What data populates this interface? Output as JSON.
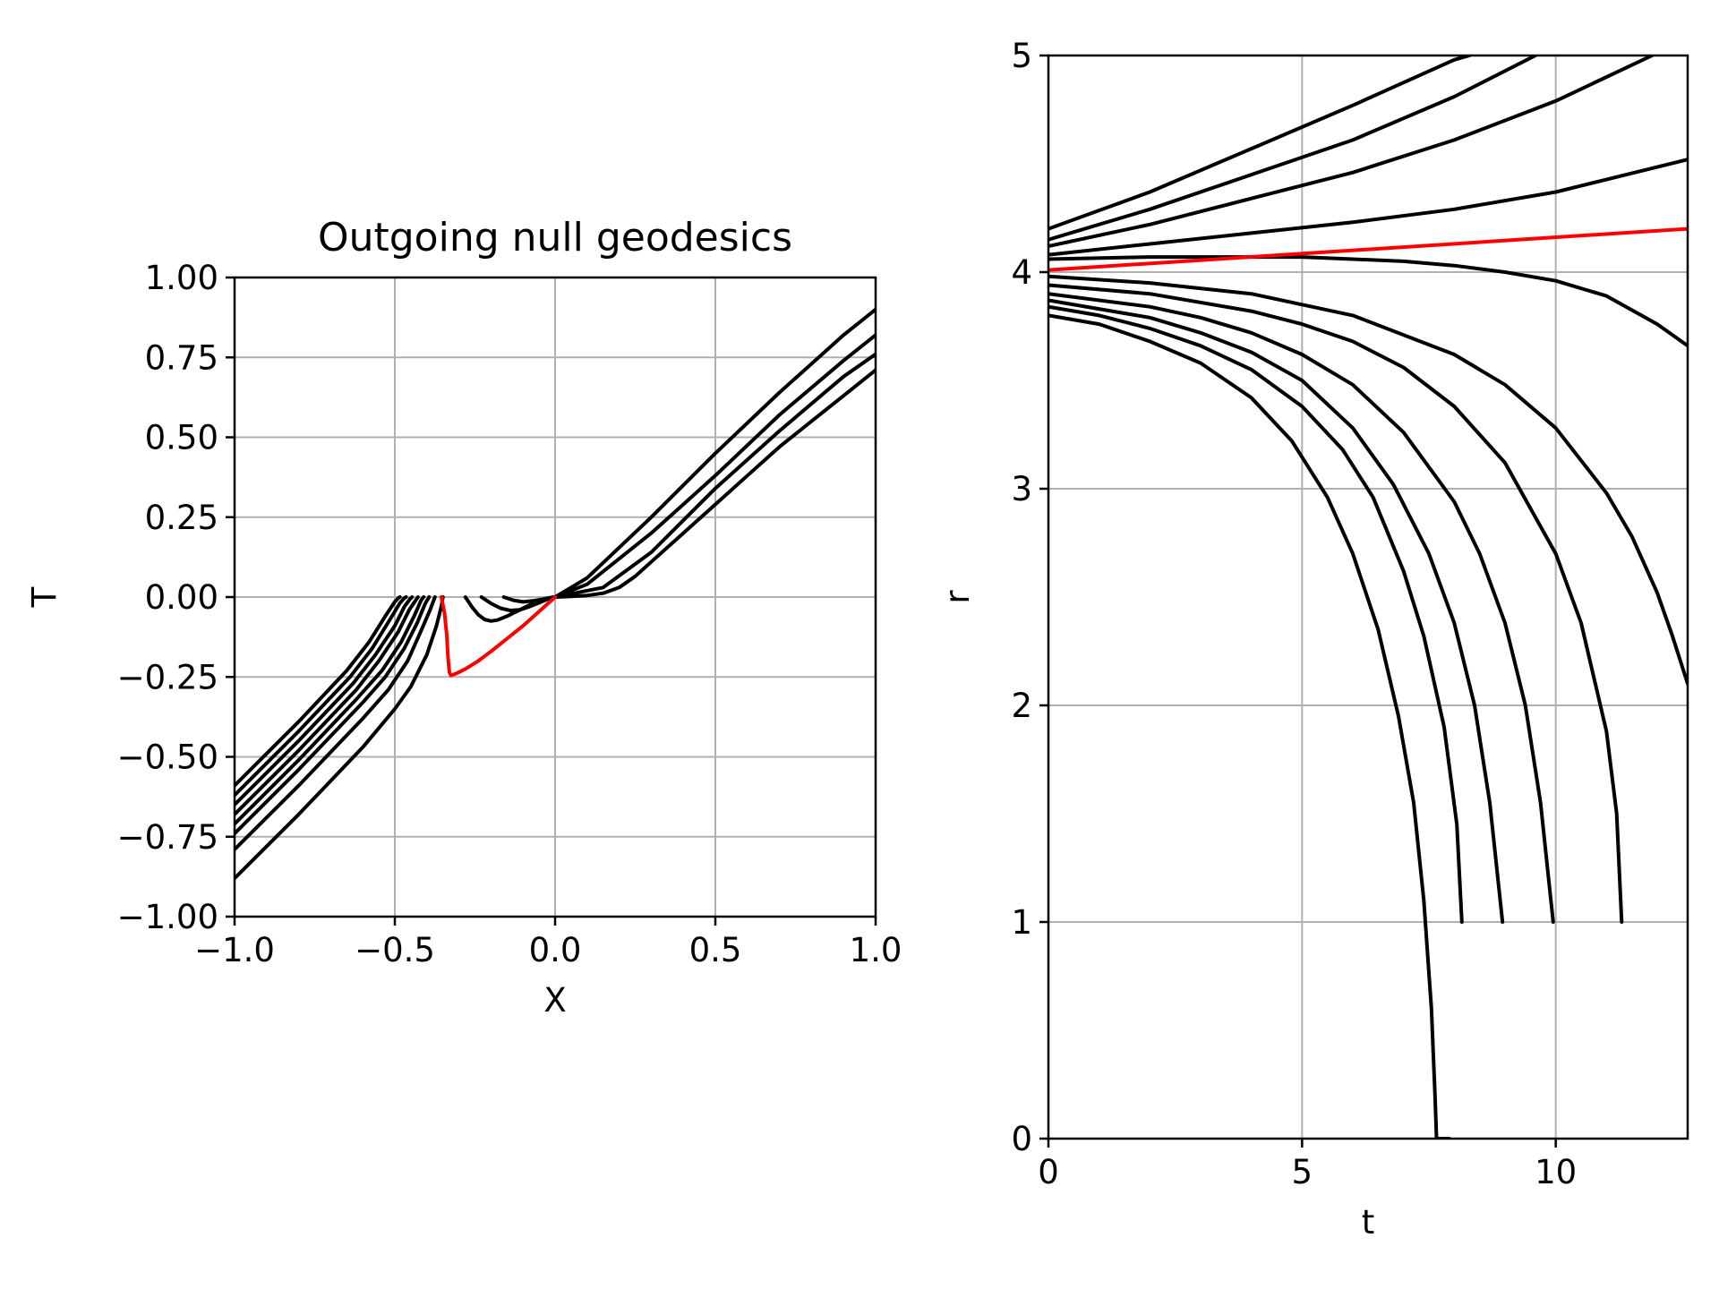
{
  "colors": {
    "primary": "#000000",
    "highlight": "#ff0000",
    "grid": "#b0b0b0"
  },
  "chart_data": [
    {
      "type": "line",
      "title": "Outgoing null geodesics",
      "xlabel": "X",
      "ylabel": "T",
      "xlim": [
        -1.0,
        1.0
      ],
      "ylim": [
        -1.0,
        1.0
      ],
      "grid": true,
      "xticks": [
        -1.0,
        -0.5,
        0.0,
        0.5,
        1.0
      ],
      "xtick_labels": [
        "−1.0",
        "−0.5",
        "0.0",
        "0.5",
        "1.0"
      ],
      "yticks": [
        -1.0,
        -0.75,
        -0.5,
        -0.25,
        0.0,
        0.25,
        0.5,
        0.75,
        1.0
      ],
      "ytick_labels": [
        "−1.00",
        "−0.75",
        "−0.50",
        "−0.25",
        "0.00",
        "0.25",
        "0.50",
        "0.75",
        "1.00"
      ],
      "series": [
        {
          "color": "#000000",
          "x": [
            -1.0,
            -0.8,
            -0.6,
            -0.5,
            -0.45,
            -0.4,
            -0.37,
            -0.355,
            -0.35
          ],
          "y": [
            -0.88,
            -0.68,
            -0.47,
            -0.35,
            -0.28,
            -0.18,
            -0.09,
            -0.03,
            0.0
          ]
        },
        {
          "color": "#000000",
          "x": [
            -1.0,
            -0.8,
            -0.6,
            -0.52,
            -0.46,
            -0.42,
            -0.39,
            -0.375
          ],
          "y": [
            -0.79,
            -0.59,
            -0.38,
            -0.29,
            -0.2,
            -0.11,
            -0.04,
            0.0
          ]
        },
        {
          "color": "#000000",
          "x": [
            -1.0,
            -0.8,
            -0.6,
            -0.53,
            -0.47,
            -0.43,
            -0.405,
            -0.393
          ],
          "y": [
            -0.74,
            -0.54,
            -0.33,
            -0.25,
            -0.16,
            -0.08,
            -0.02,
            0.0
          ]
        },
        {
          "color": "#000000",
          "x": [
            -1.0,
            -0.8,
            -0.62,
            -0.54,
            -0.48,
            -0.44,
            -0.418,
            -0.41
          ],
          "y": [
            -0.71,
            -0.51,
            -0.32,
            -0.23,
            -0.14,
            -0.06,
            -0.01,
            0.0
          ]
        },
        {
          "color": "#000000",
          "x": [
            -1.0,
            -0.8,
            -0.62,
            -0.55,
            -0.49,
            -0.455,
            -0.435,
            -0.428
          ],
          "y": [
            -0.68,
            -0.48,
            -0.29,
            -0.2,
            -0.11,
            -0.04,
            -0.01,
            0.0
          ]
        },
        {
          "color": "#000000",
          "x": [
            -1.0,
            -0.8,
            -0.63,
            -0.56,
            -0.5,
            -0.47,
            -0.452,
            -0.446
          ],
          "y": [
            -0.65,
            -0.45,
            -0.27,
            -0.18,
            -0.09,
            -0.03,
            -0.005,
            0.0
          ]
        },
        {
          "color": "#000000",
          "x": [
            -1.0,
            -0.8,
            -0.64,
            -0.57,
            -0.515,
            -0.485,
            -0.47,
            -0.465
          ],
          "y": [
            -0.62,
            -0.42,
            -0.25,
            -0.16,
            -0.07,
            -0.02,
            -0.003,
            0.0
          ]
        },
        {
          "color": "#000000",
          "x": [
            -1.0,
            -0.8,
            -0.65,
            -0.58,
            -0.53,
            -0.5,
            -0.488,
            -0.484
          ],
          "y": [
            -0.59,
            -0.39,
            -0.23,
            -0.14,
            -0.06,
            -0.015,
            -0.002,
            0.0
          ]
        },
        {
          "color": "#000000",
          "x": [
            -0.28,
            -0.26,
            -0.24,
            -0.22,
            -0.2,
            -0.18,
            -0.15,
            -0.12,
            -0.08,
            -0.04,
            0.0,
            0.1,
            0.3,
            0.5,
            0.7,
            0.9,
            1.0
          ],
          "y": [
            0.0,
            -0.03,
            -0.055,
            -0.07,
            -0.075,
            -0.072,
            -0.06,
            -0.045,
            -0.025,
            -0.01,
            0.0,
            0.06,
            0.25,
            0.45,
            0.64,
            0.82,
            0.9
          ]
        },
        {
          "color": "#000000",
          "x": [
            -0.23,
            -0.2,
            -0.17,
            -0.14,
            -0.11,
            -0.08,
            -0.05,
            -0.02,
            0.0,
            0.1,
            0.3,
            0.5,
            0.7,
            0.9,
            1.0
          ],
          "y": [
            0.0,
            -0.02,
            -0.035,
            -0.042,
            -0.04,
            -0.03,
            -0.018,
            -0.005,
            0.0,
            0.04,
            0.2,
            0.38,
            0.57,
            0.74,
            0.82
          ]
        },
        {
          "color": "#000000",
          "x": [
            -0.16,
            -0.13,
            -0.1,
            -0.07,
            -0.04,
            -0.01,
            0.0,
            0.15,
            0.3,
            0.5,
            0.7,
            0.9,
            1.0
          ],
          "y": [
            0.0,
            -0.01,
            -0.015,
            -0.012,
            -0.007,
            -0.001,
            0.0,
            0.03,
            0.14,
            0.34,
            0.52,
            0.69,
            0.76
          ]
        },
        {
          "color": "#000000",
          "x": [
            0.0,
            0.05,
            0.1,
            0.15,
            0.2,
            0.25,
            0.3,
            0.4,
            0.5,
            0.6,
            0.7,
            0.8,
            0.9,
            1.0
          ],
          "y": [
            0.0,
            0.002,
            0.005,
            0.012,
            0.03,
            0.065,
            0.11,
            0.2,
            0.29,
            0.38,
            0.47,
            0.55,
            0.63,
            0.71
          ]
        },
        {
          "color": "#ff0000",
          "x": [
            -0.355,
            -0.345,
            -0.338,
            -0.334,
            -0.33,
            -0.325,
            -0.31,
            -0.28,
            -0.24,
            -0.2,
            -0.15,
            -0.1,
            -0.05,
            0.0
          ],
          "y": [
            0.0,
            -0.05,
            -0.12,
            -0.19,
            -0.235,
            -0.245,
            -0.24,
            -0.225,
            -0.2,
            -0.17,
            -0.13,
            -0.09,
            -0.045,
            0.0
          ]
        }
      ]
    },
    {
      "type": "line",
      "title": "",
      "xlabel": "t",
      "ylabel": "r",
      "xlim": [
        0,
        12.6
      ],
      "ylim": [
        0,
        5
      ],
      "grid": true,
      "xticks": [
        0,
        5,
        10
      ],
      "xtick_labels": [
        "0",
        "5",
        "10"
      ],
      "yticks": [
        0,
        1,
        2,
        3,
        4,
        5
      ],
      "ytick_labels": [
        "0",
        "1",
        "2",
        "3",
        "4",
        "5"
      ],
      "series": [
        {
          "color": "#000000",
          "x": [
            0,
            2,
            4,
            6,
            8,
            8.3
          ],
          "y": [
            4.2,
            4.37,
            4.57,
            4.77,
            4.98,
            5.0
          ]
        },
        {
          "color": "#000000",
          "x": [
            0,
            2,
            4,
            6,
            8,
            9.6
          ],
          "y": [
            4.15,
            4.29,
            4.45,
            4.61,
            4.81,
            5.0
          ]
        },
        {
          "color": "#000000",
          "x": [
            0,
            2,
            4,
            6,
            8,
            10,
            11.9
          ],
          "y": [
            4.12,
            4.22,
            4.34,
            4.46,
            4.61,
            4.79,
            5.0
          ]
        },
        {
          "color": "#000000",
          "x": [
            0,
            2,
            4,
            6,
            8,
            10,
            12.6
          ],
          "y": [
            4.08,
            4.13,
            4.18,
            4.23,
            4.29,
            4.37,
            4.52
          ]
        },
        {
          "color": "#000000",
          "x": [
            0,
            2,
            4,
            5,
            6,
            7,
            8,
            9,
            10,
            11,
            12,
            12.6
          ],
          "y": [
            4.06,
            4.07,
            4.07,
            4.07,
            4.06,
            4.05,
            4.03,
            4.0,
            3.96,
            3.89,
            3.76,
            3.66
          ]
        },
        {
          "color": "#000000",
          "x": [
            0,
            2,
            4,
            6,
            8,
            9,
            10,
            11,
            11.5,
            12,
            12.3,
            12.6
          ],
          "y": [
            3.98,
            3.95,
            3.9,
            3.8,
            3.62,
            3.48,
            3.28,
            2.98,
            2.78,
            2.52,
            2.32,
            2.1
          ]
        },
        {
          "color": "#000000",
          "x": [
            0,
            2,
            4,
            5,
            6,
            7,
            8,
            9,
            10,
            10.5,
            11,
            11.2,
            11.3
          ],
          "y": [
            3.94,
            3.9,
            3.82,
            3.76,
            3.68,
            3.56,
            3.38,
            3.12,
            2.7,
            2.38,
            1.88,
            1.5,
            1.0
          ]
        },
        {
          "color": "#000000",
          "x": [
            0,
            2,
            3,
            4,
            5,
            6,
            7,
            8,
            8.5,
            9,
            9.4,
            9.7,
            9.95
          ],
          "y": [
            3.9,
            3.84,
            3.79,
            3.72,
            3.62,
            3.48,
            3.26,
            2.94,
            2.7,
            2.38,
            2.0,
            1.55,
            1.0
          ]
        },
        {
          "color": "#000000",
          "x": [
            0,
            2,
            3,
            4,
            5,
            6,
            6.8,
            7.5,
            8,
            8.4,
            8.7,
            8.95
          ],
          "y": [
            3.87,
            3.79,
            3.72,
            3.63,
            3.5,
            3.28,
            3.02,
            2.7,
            2.38,
            2.0,
            1.55,
            1.0
          ]
        },
        {
          "color": "#000000",
          "x": [
            0,
            1,
            2,
            3,
            4,
            5,
            5.8,
            6.4,
            7,
            7.4,
            7.8,
            8.05,
            8.15
          ],
          "y": [
            3.84,
            3.8,
            3.74,
            3.66,
            3.55,
            3.38,
            3.18,
            2.96,
            2.62,
            2.32,
            1.9,
            1.45,
            1.0
          ]
        },
        {
          "color": "#000000",
          "x": [
            0,
            1,
            2,
            3,
            4,
            4.8,
            5.5,
            6.0,
            6.5,
            6.9,
            7.2,
            7.4,
            7.55,
            7.62,
            7.65,
            7.9
          ],
          "y": [
            3.8,
            3.76,
            3.68,
            3.58,
            3.42,
            3.22,
            2.96,
            2.7,
            2.35,
            1.95,
            1.55,
            1.1,
            0.6,
            0.2,
            0.0,
            0.0
          ]
        },
        {
          "color": "#ff0000",
          "x": [
            0,
            12.6
          ],
          "y": [
            4.01,
            4.2
          ]
        }
      ]
    }
  ]
}
